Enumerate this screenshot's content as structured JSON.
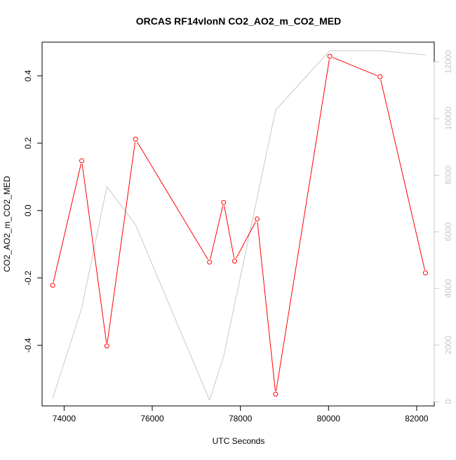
{
  "chart_data": {
    "type": "line",
    "title": "ORCAS RF14vlonN CO2_AO2_m_CO2_MED",
    "xlabel": "UTC Seconds",
    "ylabel": "CO2_AO2_m_CO2_MED",
    "xlim": [
      73500,
      82400
    ],
    "ylim": [
      -0.58,
      0.5
    ],
    "y2lim": [
      -150,
      12700
    ],
    "x_ticks": [
      74000,
      76000,
      78000,
      80000,
      82000
    ],
    "x_tick_labels": [
      "74000",
      "76000",
      "78000",
      "80000",
      "82000"
    ],
    "y_ticks": [
      -0.4,
      -0.2,
      0.0,
      0.2,
      0.4
    ],
    "y_tick_labels": [
      "-0.4",
      "-0.2",
      "0.0",
      "0.2",
      "0.4"
    ],
    "y2_ticks": [
      0,
      2000,
      4000,
      6000,
      8000,
      10000,
      12000
    ],
    "y2_tick_labels": [
      "0",
      "2000",
      "4000",
      "6000",
      "8000",
      "10000",
      "12000"
    ],
    "grid": false,
    "series": [
      {
        "axis": "left",
        "color": "#ff0000",
        "markers": true,
        "x": [
          73740,
          74400,
          74970,
          75620,
          77300,
          77620,
          77870,
          78380,
          78800,
          80030,
          81170,
          82200
        ],
        "y": [
          -0.222,
          0.148,
          -0.402,
          0.212,
          -0.153,
          0.024,
          -0.15,
          -0.025,
          -0.545,
          0.458,
          0.397,
          -0.185
        ]
      },
      {
        "axis": "right",
        "color": "#c8c8c8",
        "markers": false,
        "x": [
          73740,
          74400,
          74970,
          75620,
          77300,
          77620,
          78800,
          80030,
          81170,
          82200
        ],
        "y": [
          120,
          3300,
          7600,
          6250,
          50,
          1600,
          10300,
          12400,
          12400,
          12250
        ]
      }
    ]
  }
}
